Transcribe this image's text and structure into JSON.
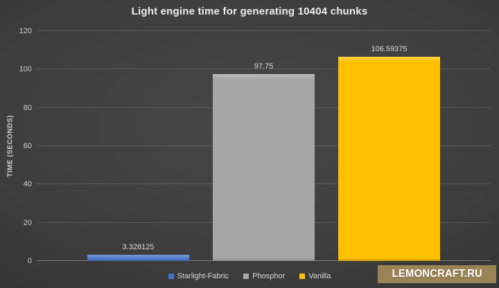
{
  "title": "Light engine time for generating 10404 chunks",
  "chart_data": {
    "type": "bar",
    "categories": [
      "Starlight-Fabric",
      "Phosphor",
      "Vanilla"
    ],
    "values": [
      3.328125,
      97.75,
      106.59375
    ],
    "value_labels": [
      "3.328125",
      "97.75",
      "106.59375"
    ],
    "series_colors": [
      "#4472c4",
      "#a6a6a6",
      "#ffc000"
    ],
    "title": "Light engine time for generating 10404 chunks",
    "xlabel": "",
    "ylabel": "TIME (SECONDS)",
    "ylim": [
      0,
      120
    ],
    "yticks": [
      0,
      20,
      40,
      60,
      80,
      100,
      120
    ],
    "grid": true,
    "legend_position": "bottom",
    "legend_entries": [
      "Starlight-Fabric",
      "Phosphor",
      "Vanilla"
    ]
  },
  "watermark": {
    "text": "LEMONCRAFT.RU",
    "background_color": "#9a8355",
    "text_color": "#ffffff"
  }
}
